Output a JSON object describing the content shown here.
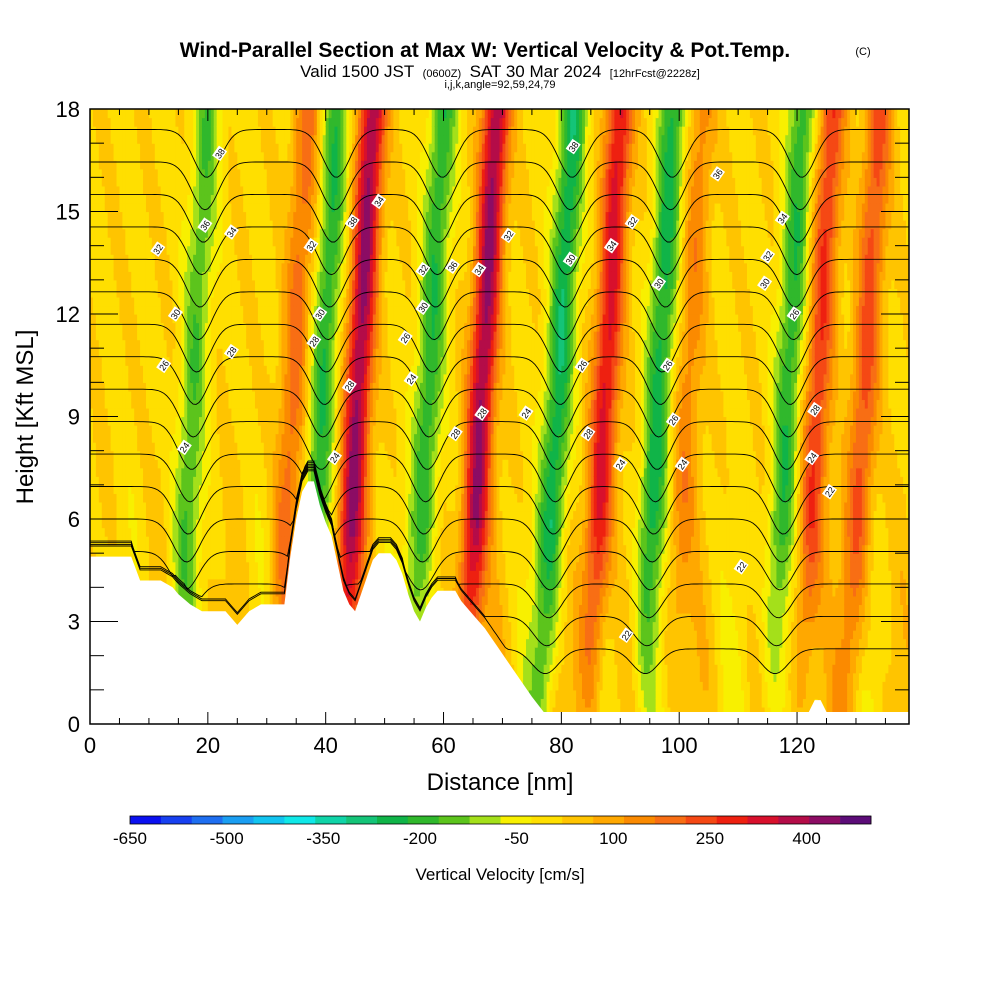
{
  "title": {
    "main": "Wind-Parallel Section at Max W: Vertical Velocity & Pot.Temp.",
    "copyright": "(C)",
    "valid_prefix": "Valid 1500 JST",
    "valid_utc": "(0600Z)",
    "valid_date": "SAT 30 Mar 2024",
    "forecast": "[12hrFcst@2228z]",
    "indices": "i,j,k,angle=92,59,24,79"
  },
  "chart_data": {
    "type": "heatmap",
    "xlabel": "Distance [nm]",
    "ylabel": "Height [Kft MSL]",
    "xlim": [
      0,
      139
    ],
    "ylim": [
      0,
      18
    ],
    "xticks": [
      "0",
      "20",
      "40",
      "60",
      "80",
      "100",
      "120"
    ],
    "xtick_values": [
      0,
      20,
      40,
      60,
      80,
      100,
      120
    ],
    "yticks": [
      "0",
      "3",
      "6",
      "9",
      "12",
      "15",
      "18"
    ],
    "ytick_values": [
      0,
      3,
      6,
      9,
      12,
      15,
      18
    ],
    "fill_variable": "Vertical Velocity [cm/s]",
    "contour_variable": "Potential Temperature",
    "colorbar": {
      "label": "Vertical Velocity [cm/s]",
      "tick_labels": [
        "-650",
        "-500",
        "-350",
        "-200",
        "-50",
        "100",
        "250",
        "400"
      ],
      "tick_values": [
        -650,
        -500,
        -350,
        -200,
        -50,
        100,
        250,
        400
      ],
      "bin_edges": [
        -650,
        -600,
        -550,
        -500,
        -450,
        -400,
        -350,
        -300,
        -250,
        -200,
        -150,
        -100,
        -50,
        0,
        50,
        100,
        150,
        200,
        250,
        300,
        350,
        400,
        450,
        500
      ],
      "colors": [
        "#0a10f0",
        "#1740f0",
        "#1e6ef0",
        "#1a9ef2",
        "#12c4f0",
        "#10e8e8",
        "#10d4a8",
        "#14c478",
        "#10b448",
        "#30b82c",
        "#5cc41c",
        "#a4e01a",
        "#f8f000",
        "#ffdf00",
        "#ffc400",
        "#ffa800",
        "#fb8a00",
        "#f86e14",
        "#f54814",
        "#ee2010",
        "#d8102c",
        "#b40c48",
        "#8c0c64",
        "#5c0c78"
      ]
    },
    "updrafts": [
      {
        "center_x": 37,
        "peak": 180,
        "tilt": 0.55
      },
      {
        "center_x": 48,
        "peak": 420,
        "tilt": 0.55
      },
      {
        "center_x": 69,
        "peak": 420,
        "tilt": 0.55
      },
      {
        "center_x": 90,
        "peak": 330,
        "tilt": 0.55
      },
      {
        "center_x": 104,
        "peak": 140,
        "tilt": 0.55
      },
      {
        "center_x": 126,
        "peak": 260,
        "tilt": 0.55
      },
      {
        "center_x": 134,
        "peak": 230,
        "tilt": 0.55
      }
    ],
    "downdrafts": [
      {
        "center_x": 20,
        "peak": -180,
        "tilt": 0.55
      },
      {
        "center_x": 42,
        "peak": -230,
        "tilt": 0.55
      },
      {
        "center_x": 60,
        "peak": -230,
        "tilt": 0.55
      },
      {
        "center_x": 82,
        "peak": -280,
        "tilt": 0.55
      },
      {
        "center_x": 99,
        "peak": -260,
        "tilt": 0.55
      },
      {
        "center_x": 121,
        "peak": -230,
        "tilt": 0.55
      }
    ],
    "contour_levels": [
      22,
      24,
      26,
      28,
      30,
      32,
      34,
      36,
      38
    ],
    "contour_labels": [
      {
        "text": "38",
        "x": 22,
        "y": 16.7
      },
      {
        "text": "36",
        "x": 19.5,
        "y": 14.6
      },
      {
        "text": "34",
        "x": 24,
        "y": 14.4
      },
      {
        "text": "32",
        "x": 11.5,
        "y": 13.9
      },
      {
        "text": "30",
        "x": 14.5,
        "y": 12.0
      },
      {
        "text": "28",
        "x": 24,
        "y": 10.9
      },
      {
        "text": "26",
        "x": 12.5,
        "y": 10.5
      },
      {
        "text": "24",
        "x": 16,
        "y": 8.1
      },
      {
        "text": "32",
        "x": 37.5,
        "y": 14.0
      },
      {
        "text": "30",
        "x": 39,
        "y": 12.0
      },
      {
        "text": "28",
        "x": 38,
        "y": 11.2
      },
      {
        "text": "28",
        "x": 44,
        "y": 9.9
      },
      {
        "text": "24",
        "x": 41.5,
        "y": 7.8
      },
      {
        "text": "38",
        "x": 44.5,
        "y": 14.7
      },
      {
        "text": "34",
        "x": 49,
        "y": 15.3
      },
      {
        "text": "26",
        "x": 53.5,
        "y": 11.3
      },
      {
        "text": "24",
        "x": 54.5,
        "y": 10.1
      },
      {
        "text": "32",
        "x": 56.5,
        "y": 13.3
      },
      {
        "text": "30",
        "x": 56.5,
        "y": 12.2
      },
      {
        "text": "36",
        "x": 61.5,
        "y": 13.4
      },
      {
        "text": "34",
        "x": 66,
        "y": 13.3
      },
      {
        "text": "32",
        "x": 71,
        "y": 14.3
      },
      {
        "text": "28",
        "x": 62,
        "y": 8.5
      },
      {
        "text": "28",
        "x": 66.5,
        "y": 9.1
      },
      {
        "text": "24",
        "x": 74,
        "y": 9.1
      },
      {
        "text": "38",
        "x": 82,
        "y": 16.9
      },
      {
        "text": "30",
        "x": 81.5,
        "y": 13.6
      },
      {
        "text": "26",
        "x": 83.5,
        "y": 10.5
      },
      {
        "text": "28",
        "x": 84.5,
        "y": 8.5
      },
      {
        "text": "34",
        "x": 88.5,
        "y": 14.0
      },
      {
        "text": "32",
        "x": 92,
        "y": 14.7
      },
      {
        "text": "24",
        "x": 90,
        "y": 7.6
      },
      {
        "text": "30",
        "x": 96.5,
        "y": 12.9
      },
      {
        "text": "26",
        "x": 98,
        "y": 10.5
      },
      {
        "text": "26",
        "x": 99,
        "y": 8.9
      },
      {
        "text": "24",
        "x": 100.5,
        "y": 7.6
      },
      {
        "text": "36",
        "x": 106.5,
        "y": 16.1
      },
      {
        "text": "34",
        "x": 117.5,
        "y": 14.8
      },
      {
        "text": "32",
        "x": 115,
        "y": 13.7
      },
      {
        "text": "30",
        "x": 114.5,
        "y": 12.9
      },
      {
        "text": "26",
        "x": 119.5,
        "y": 12.0
      },
      {
        "text": "28",
        "x": 123,
        "y": 9.2
      },
      {
        "text": "24",
        "x": 122.5,
        "y": 7.8
      },
      {
        "text": "22",
        "x": 125.5,
        "y": 6.8
      },
      {
        "text": "22",
        "x": 110.5,
        "y": 4.6
      },
      {
        "text": "22",
        "x": 91,
        "y": 2.6
      }
    ],
    "terrain": [
      [
        0,
        4.9
      ],
      [
        7,
        4.9
      ],
      [
        8.5,
        4.2
      ],
      [
        12,
        4.2
      ],
      [
        14,
        4.0
      ],
      [
        15,
        3.8
      ],
      [
        17,
        3.5
      ],
      [
        19,
        3.3
      ],
      [
        23,
        3.3
      ],
      [
        25,
        2.9
      ],
      [
        27,
        3.3
      ],
      [
        29,
        3.5
      ],
      [
        33,
        3.5
      ],
      [
        34,
        4.9
      ],
      [
        35,
        6.0
      ],
      [
        36,
        6.8
      ],
      [
        37,
        7.1
      ],
      [
        38,
        7.1
      ],
      [
        39,
        6.4
      ],
      [
        40,
        5.9
      ],
      [
        41,
        5.5
      ],
      [
        42,
        4.7
      ],
      [
        43,
        3.9
      ],
      [
        44,
        3.5
      ],
      [
        45,
        3.3
      ],
      [
        46,
        3.8
      ],
      [
        47,
        4.3
      ],
      [
        48,
        4.8
      ],
      [
        49,
        5.0
      ],
      [
        51,
        5.0
      ],
      [
        52,
        4.8
      ],
      [
        53,
        4.4
      ],
      [
        54,
        3.8
      ],
      [
        55,
        3.3
      ],
      [
        56,
        3.0
      ],
      [
        57,
        3.4
      ],
      [
        58,
        3.7
      ],
      [
        59,
        3.9
      ],
      [
        62,
        3.9
      ],
      [
        63,
        3.6
      ],
      [
        65,
        3.2
      ],
      [
        67,
        2.8
      ],
      [
        69,
        2.3
      ],
      [
        71,
        1.8
      ],
      [
        73,
        1.3
      ],
      [
        75,
        0.8
      ],
      [
        77,
        0.35
      ],
      [
        78,
        0.35
      ],
      [
        122,
        0.35
      ],
      [
        123,
        0.7
      ],
      [
        124,
        0.7
      ],
      [
        125,
        0.35
      ],
      [
        139,
        0.35
      ]
    ]
  }
}
